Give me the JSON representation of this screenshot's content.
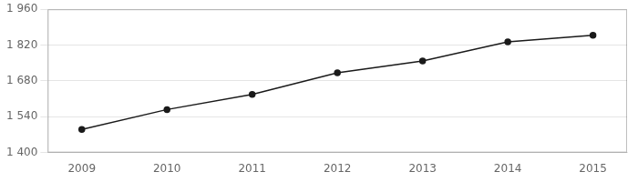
{
  "chart_data": {
    "type": "line",
    "x": [
      2009,
      2010,
      2011,
      2012,
      2013,
      2014,
      2015
    ],
    "values": [
      1490,
      1568,
      1627,
      1712,
      1758,
      1833,
      1858
    ],
    "color": "#1a1a1a",
    "marker": "circle",
    "xlim": [
      2008.6,
      2015.4
    ],
    "xticks": [
      2009,
      2010,
      2011,
      2012,
      2013,
      2014,
      2015
    ],
    "ylim": [
      1400,
      1960
    ],
    "yticks": [
      {
        "value": 1400,
        "label": "1 400"
      },
      {
        "value": 1540,
        "label": "1 540"
      },
      {
        "value": 1680,
        "label": "1 680"
      },
      {
        "value": 1820,
        "label": "1 820"
      },
      {
        "value": 1960,
        "label": "1 960"
      }
    ],
    "grid": "y"
  }
}
